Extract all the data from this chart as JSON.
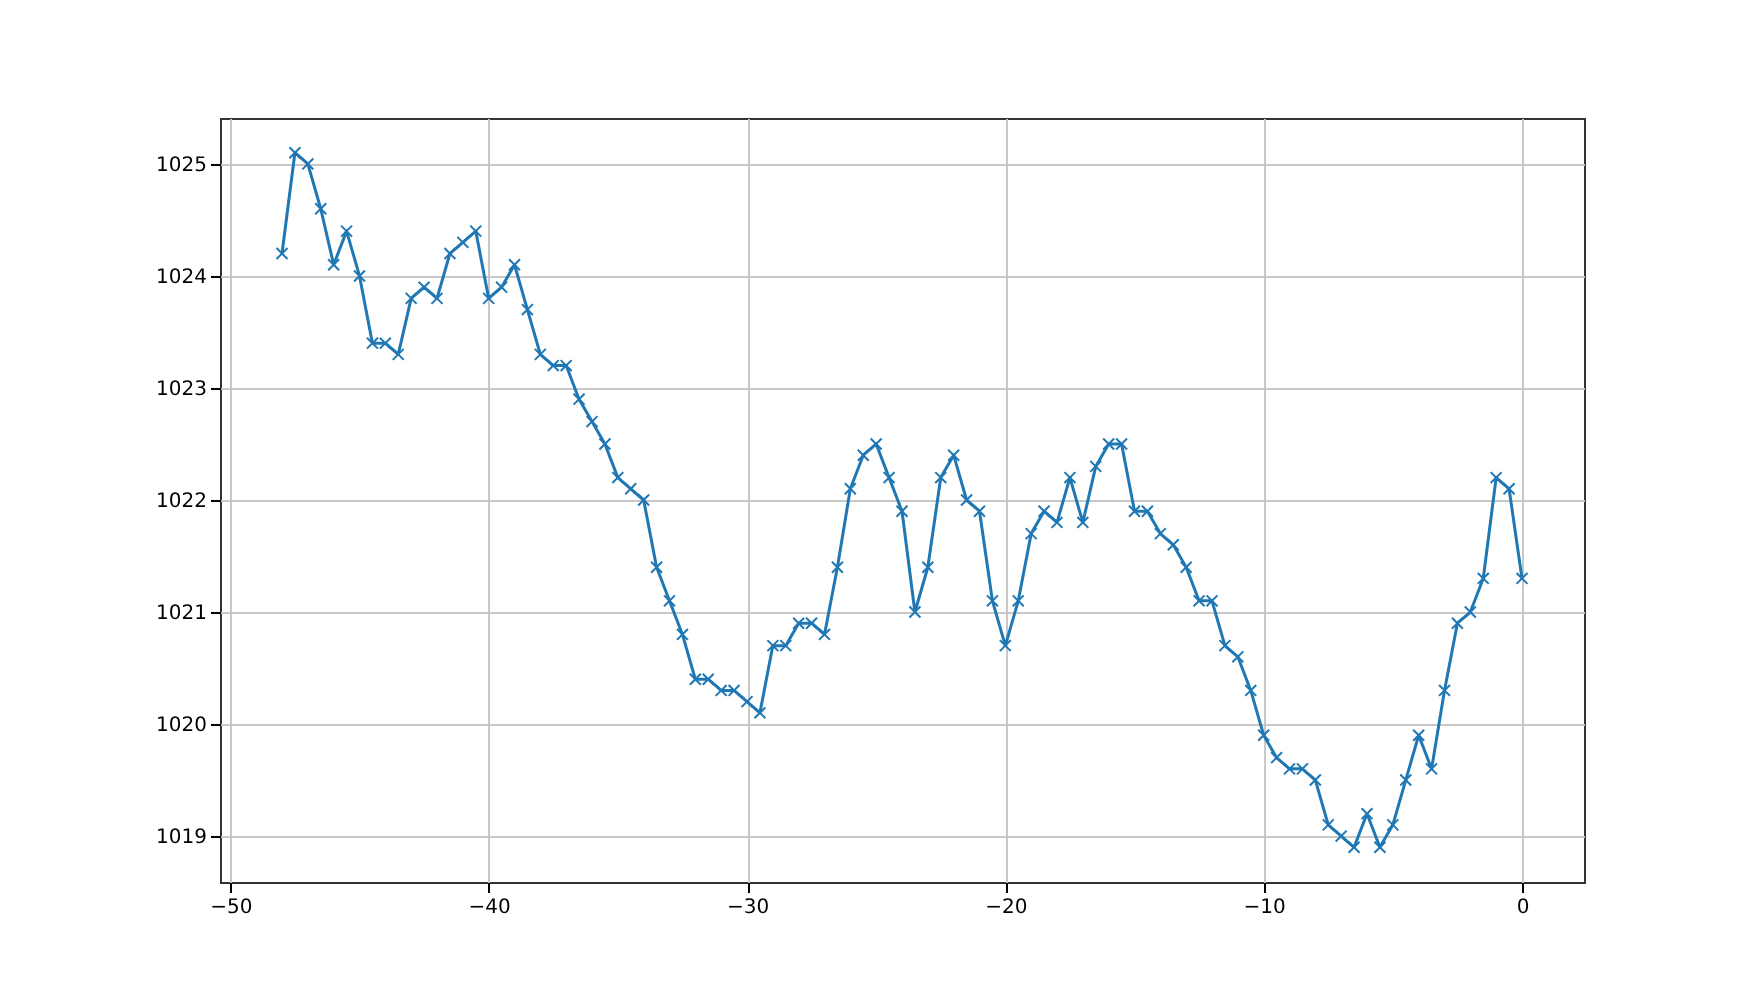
{
  "chart_data": {
    "type": "line",
    "x": [
      -48,
      -47.5,
      -47,
      -46.5,
      -46,
      -45.5,
      -45,
      -44.5,
      -44,
      -43.5,
      -43,
      -42.5,
      -42,
      -41.5,
      -41,
      -40.5,
      -40,
      -39.5,
      -39,
      -38.5,
      -38,
      -37.5,
      -37,
      -36.5,
      -36,
      -35.5,
      -35,
      -34.5,
      -34,
      -33.5,
      -33,
      -32.5,
      -32,
      -31.5,
      -31,
      -30.5,
      -30,
      -29.5,
      -29,
      -28.5,
      -28,
      -27.5,
      -27,
      -26.5,
      -26,
      -25.5,
      -25,
      -24.5,
      -24,
      -23.5,
      -23,
      -22.5,
      -22,
      -21.5,
      -21,
      -20.5,
      -20,
      -19.5,
      -19,
      -18.5,
      -18,
      -17.5,
      -17,
      -16.5,
      -16,
      -15.5,
      -15,
      -14.5,
      -14,
      -13.5,
      -13,
      -12.5,
      -12,
      -11.5,
      -11,
      -10.5,
      -10,
      -9.5,
      -9,
      -8.5,
      -8,
      -7.5,
      -7,
      -6.5,
      -6,
      -5.5,
      -5,
      -4.5,
      -4,
      -3.5,
      -3,
      -2.5,
      -2,
      -1.5,
      -1,
      -0.5,
      0
    ],
    "series": [
      {
        "color": "#1f77b4",
        "values": [
          1024.2,
          1025.1,
          1025.0,
          1024.6,
          1024.1,
          1024.4,
          1024.0,
          1023.4,
          1023.4,
          1023.3,
          1023.8,
          1023.9,
          1023.8,
          1024.2,
          1024.3,
          1024.4,
          1023.8,
          1023.9,
          1024.1,
          1023.7,
          1023.3,
          1023.2,
          1023.2,
          1022.9,
          1022.7,
          1022.5,
          1022.2,
          1022.1,
          1022.0,
          1021.4,
          1021.1,
          1020.8,
          1020.4,
          1020.4,
          1020.3,
          1020.3,
          1020.2,
          1020.1,
          1020.7,
          1020.7,
          1020.9,
          1020.9,
          1020.8,
          1021.4,
          1022.1,
          1022.4,
          1022.5,
          1022.2,
          1021.9,
          1021.0,
          1021.4,
          1022.2,
          1022.4,
          1022.0,
          1021.9,
          1021.1,
          1020.7,
          1021.1,
          1021.7,
          1021.9,
          1021.8,
          1022.2,
          1021.8,
          1022.3,
          1022.5,
          1022.5,
          1021.9,
          1021.9,
          1021.7,
          1021.6,
          1021.4,
          1021.1,
          1021.1,
          1020.7,
          1020.6,
          1020.3,
          1019.9,
          1019.7,
          1019.6,
          1019.6,
          1019.5,
          1019.1,
          1019.0,
          1018.9,
          1019.2,
          1018.9,
          1019.1,
          1019.5,
          1019.9,
          1019.6,
          1020.3,
          1020.9,
          1021.0,
          1021.3,
          1022.2,
          1022.1,
          1021.3
        ]
      }
    ],
    "xlim": [
      -50.4,
      2.4
    ],
    "xticks": [
      -50,
      -40,
      -30,
      -20,
      -10,
      0
    ],
    "ylim": [
      1018.59,
      1025.41
    ],
    "yticks": [
      1019,
      1020,
      1021,
      1022,
      1023,
      1024,
      1025
    ],
    "grid": true,
    "marker": "cross",
    "line_style": "solid"
  }
}
